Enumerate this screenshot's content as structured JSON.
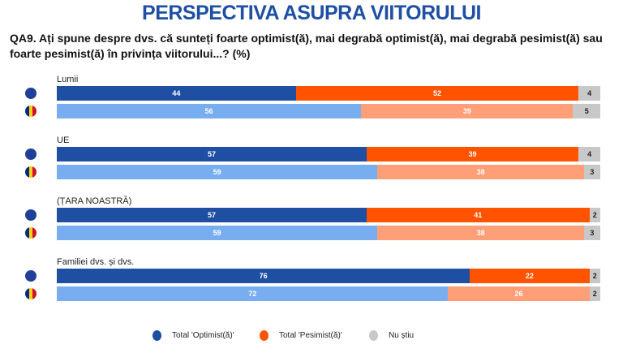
{
  "title": "PERSPECTIVA ASUPRA VIITORULUI",
  "question": "QA9. Ați spune despre dvs. că sunteți foarte optimist(ă), mai degrabă optimist(ă), mai degrabă pesimist(ă) sau foarte pesimist(ă) în privința viitorului...? (%)",
  "chart_data": {
    "type": "bar",
    "stacked": true,
    "orientation": "horizontal",
    "series_names": [
      "Total 'Optimist(ă)'",
      "Total 'Pesimist(ă)'",
      "Nu știu"
    ],
    "colors": {
      "eu": [
        "#1f4fa3",
        "#ff5300",
        "#c8c8c8"
      ],
      "ro": [
        "#78adf0",
        "#ff9f78",
        "#c8c8c8"
      ]
    },
    "groups": [
      {
        "label": "Lumii",
        "rows": [
          {
            "flag": "eu",
            "values": [
              44,
              52,
              4
            ]
          },
          {
            "flag": "ro",
            "values": [
              56,
              39,
              5
            ]
          }
        ]
      },
      {
        "label": "UE",
        "rows": [
          {
            "flag": "eu",
            "values": [
              57,
              39,
              4
            ]
          },
          {
            "flag": "ro",
            "values": [
              59,
              38,
              3
            ]
          }
        ]
      },
      {
        "label": "(ȚARA NOASTRĂ)",
        "rows": [
          {
            "flag": "eu",
            "values": [
              57,
              41,
              2
            ]
          },
          {
            "flag": "ro",
            "values": [
              59,
              38,
              3
            ]
          }
        ]
      },
      {
        "label": "Familiei dvs. și dvs.",
        "rows": [
          {
            "flag": "eu",
            "values": [
              76,
              22,
              2
            ]
          },
          {
            "flag": "ro",
            "values": [
              72,
              26,
              2
            ]
          }
        ]
      }
    ],
    "legend": [
      {
        "label": "Total 'Optimist(ă)'",
        "color": "#1f4fa3"
      },
      {
        "label": "Total 'Pesimist(ă)'",
        "color": "#ff5300"
      },
      {
        "label": "Nu știu",
        "color": "#c8c8c8"
      }
    ],
    "legend_position": "bottom"
  }
}
